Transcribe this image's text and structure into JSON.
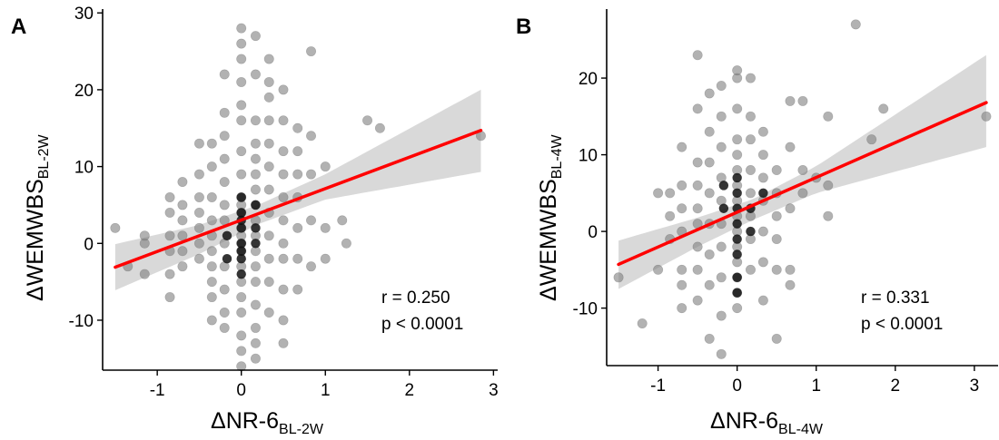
{
  "figure": {
    "panels": [
      "A",
      "B"
    ]
  },
  "chart_data": [
    {
      "panel": "A",
      "type": "scatter",
      "xlabel_main": "ΔNR-6",
      "xlabel_sub": "BL-2W",
      "ylabel_main": "ΔWEMWBS",
      "ylabel_sub": "BL-2W",
      "xlim": [
        -1.65,
        3.05
      ],
      "ylim": [
        -16.5,
        30.5
      ],
      "xticks": [
        -1,
        0,
        1,
        2,
        3
      ],
      "xtick_labels": [
        "-1",
        "0",
        "1",
        "2",
        "3"
      ],
      "yticks": [
        -10,
        0,
        10,
        20,
        30
      ],
      "ytick_labels": [
        "-10",
        "0",
        "10",
        "20",
        "30"
      ],
      "grid": false,
      "annotations": [
        "r = 0.250",
        "p < 0.0001"
      ],
      "point_color": "#7f7f7f",
      "regression": {
        "color": "#ff0000",
        "x": [
          -1.5,
          2.85
        ],
        "y": [
          -3.1,
          14.7
        ]
      },
      "confidence_band": {
        "color": "#d9d9d9",
        "x": [
          -1.5,
          -0.5,
          0.2,
          1.0,
          2.85
        ],
        "lower": [
          -6.1,
          -1.4,
          2.5,
          5.7,
          9.3
        ],
        "upper": [
          -0.1,
          2.4,
          5.0,
          9.0,
          20.0
        ]
      },
      "points": [
        [
          -1.5,
          2
        ],
        [
          -1.35,
          -3
        ],
        [
          -1.15,
          -4
        ],
        [
          -1.15,
          0
        ],
        [
          -1.15,
          1
        ],
        [
          -0.85,
          -7
        ],
        [
          -0.85,
          -4
        ],
        [
          -0.85,
          -1
        ],
        [
          -0.85,
          1
        ],
        [
          -0.85,
          4
        ],
        [
          -0.85,
          6
        ],
        [
          -0.7,
          -3
        ],
        [
          -0.7,
          -1
        ],
        [
          -0.7,
          1
        ],
        [
          -0.7,
          3
        ],
        [
          -0.7,
          5
        ],
        [
          -0.7,
          8
        ],
        [
          -0.5,
          -2
        ],
        [
          -0.5,
          0
        ],
        [
          -0.5,
          2
        ],
        [
          -0.5,
          4
        ],
        [
          -0.5,
          6
        ],
        [
          -0.5,
          9
        ],
        [
          -0.5,
          13
        ],
        [
          -0.35,
          -10
        ],
        [
          -0.35,
          -7
        ],
        [
          -0.35,
          -5
        ],
        [
          -0.35,
          -3
        ],
        [
          -0.35,
          -1
        ],
        [
          -0.35,
          1
        ],
        [
          -0.35,
          3
        ],
        [
          -0.35,
          6
        ],
        [
          -0.35,
          10
        ],
        [
          -0.35,
          13
        ],
        [
          -0.2,
          -11
        ],
        [
          -0.2,
          -9
        ],
        [
          -0.2,
          -6
        ],
        [
          -0.2,
          -3
        ],
        [
          -0.2,
          0
        ],
        [
          -0.2,
          3
        ],
        [
          -0.2,
          5
        ],
        [
          -0.2,
          8
        ],
        [
          -0.2,
          11
        ],
        [
          -0.2,
          14
        ],
        [
          -0.2,
          17
        ],
        [
          -0.2,
          22
        ],
        [
          0,
          -16
        ],
        [
          0,
          -14
        ],
        [
          0,
          -12
        ],
        [
          0,
          -9
        ],
        [
          0,
          -7
        ],
        [
          0,
          -5
        ],
        [
          0,
          -3
        ],
        [
          0,
          -1
        ],
        [
          0,
          0
        ],
        [
          0,
          1
        ],
        [
          0,
          2
        ],
        [
          0,
          4
        ],
        [
          0,
          5
        ],
        [
          0,
          6
        ],
        [
          0,
          9
        ],
        [
          0,
          12
        ],
        [
          0,
          16
        ],
        [
          0,
          18
        ],
        [
          0,
          21
        ],
        [
          0,
          24
        ],
        [
          0,
          26
        ],
        [
          0,
          28
        ],
        [
          0.17,
          -15
        ],
        [
          0.17,
          -13
        ],
        [
          0.17,
          -11
        ],
        [
          0.17,
          -8
        ],
        [
          0.17,
          -5
        ],
        [
          0.17,
          -3
        ],
        [
          0.17,
          -1
        ],
        [
          0.17,
          1
        ],
        [
          0.17,
          3
        ],
        [
          0.17,
          5
        ],
        [
          0.17,
          7
        ],
        [
          0.17,
          9
        ],
        [
          0.17,
          11
        ],
        [
          0.17,
          13
        ],
        [
          0.17,
          16
        ],
        [
          0.17,
          22
        ],
        [
          0.17,
          27
        ],
        [
          0.33,
          -9
        ],
        [
          0.33,
          -5
        ],
        [
          0.33,
          -2
        ],
        [
          0.33,
          1
        ],
        [
          0.33,
          4
        ],
        [
          0.33,
          7
        ],
        [
          0.33,
          10
        ],
        [
          0.33,
          13
        ],
        [
          0.33,
          16
        ],
        [
          0.33,
          19
        ],
        [
          0.33,
          21
        ],
        [
          0.33,
          24
        ],
        [
          0.5,
          -13
        ],
        [
          0.5,
          -10
        ],
        [
          0.5,
          -6
        ],
        [
          0.5,
          -2
        ],
        [
          0.5,
          0
        ],
        [
          0.5,
          3
        ],
        [
          0.5,
          6
        ],
        [
          0.5,
          9
        ],
        [
          0.5,
          12
        ],
        [
          0.5,
          16
        ],
        [
          0.5,
          20
        ],
        [
          0.67,
          -6
        ],
        [
          0.67,
          -2
        ],
        [
          0.67,
          2
        ],
        [
          0.67,
          6
        ],
        [
          0.67,
          9
        ],
        [
          0.67,
          12
        ],
        [
          0.67,
          15
        ],
        [
          0.83,
          -3
        ],
        [
          0.83,
          3
        ],
        [
          0.83,
          9
        ],
        [
          0.83,
          14
        ],
        [
          0.83,
          25
        ],
        [
          1,
          2
        ],
        [
          1,
          -2
        ],
        [
          1,
          10
        ],
        [
          1.2,
          3
        ],
        [
          1.25,
          0
        ],
        [
          1.5,
          16
        ],
        [
          1.65,
          15
        ],
        [
          2.85,
          14
        ]
      ],
      "dark_points": [
        [
          0,
          -4
        ],
        [
          0,
          -2
        ],
        [
          0,
          0
        ],
        [
          0,
          2
        ],
        [
          0,
          4
        ],
        [
          0,
          6
        ],
        [
          0.17,
          0
        ],
        [
          0.17,
          2
        ],
        [
          0.17,
          5
        ],
        [
          -0.17,
          1
        ],
        [
          -0.17,
          -2
        ],
        [
          0,
          -1
        ],
        [
          0,
          3
        ]
      ]
    },
    {
      "panel": "B",
      "type": "scatter",
      "xlabel_main": "ΔNR-6",
      "xlabel_sub": "BL-4W",
      "ylabel_main": "ΔWEMWBS",
      "ylabel_sub": "BL-4W",
      "xlim": [
        -1.65,
        3.3
      ],
      "ylim": [
        -17.5,
        29
      ],
      "xticks": [
        -1,
        0,
        1,
        2,
        3
      ],
      "xtick_labels": [
        "-1",
        "0",
        "1",
        "2",
        "3"
      ],
      "yticks": [
        -10,
        0,
        10,
        20
      ],
      "ytick_labels": [
        "-10",
        "0",
        "10",
        "20"
      ],
      "grid": false,
      "annotations": [
        "r = 0.331",
        "p < 0.0001"
      ],
      "point_color": "#7f7f7f",
      "regression": {
        "color": "#ff0000",
        "x": [
          -1.5,
          3.15
        ],
        "y": [
          -4.3,
          16.8
        ]
      },
      "confidence_band": {
        "color": "#d9d9d9",
        "x": [
          -1.5,
          -0.5,
          0.2,
          1.0,
          3.15
        ],
        "lower": [
          -7.5,
          -2.0,
          1.5,
          5.0,
          11.0
        ],
        "upper": [
          -1.2,
          1.8,
          4.2,
          8.5,
          23.0
        ]
      },
      "points": [
        [
          -1.5,
          -6
        ],
        [
          -1.2,
          -12
        ],
        [
          -1.0,
          5
        ],
        [
          -1.0,
          -5
        ],
        [
          -0.85,
          5
        ],
        [
          -0.85,
          -1
        ],
        [
          -0.85,
          2
        ],
        [
          -0.7,
          -10
        ],
        [
          -0.7,
          -7
        ],
        [
          -0.7,
          -5
        ],
        [
          -0.7,
          0
        ],
        [
          -0.7,
          3
        ],
        [
          -0.7,
          6
        ],
        [
          -0.7,
          11
        ],
        [
          -0.5,
          -9
        ],
        [
          -0.5,
          -5
        ],
        [
          -0.5,
          -2
        ],
        [
          -0.5,
          1
        ],
        [
          -0.5,
          3
        ],
        [
          -0.5,
          6
        ],
        [
          -0.5,
          9
        ],
        [
          -0.5,
          16
        ],
        [
          -0.5,
          23
        ],
        [
          -0.35,
          -14
        ],
        [
          -0.35,
          -7
        ],
        [
          -0.35,
          -3
        ],
        [
          -0.35,
          1
        ],
        [
          -0.35,
          5
        ],
        [
          -0.35,
          9
        ],
        [
          -0.35,
          13
        ],
        [
          -0.35,
          18
        ],
        [
          -0.2,
          -16
        ],
        [
          -0.2,
          -11
        ],
        [
          -0.2,
          -6
        ],
        [
          -0.2,
          -2
        ],
        [
          -0.2,
          1
        ],
        [
          -0.2,
          4
        ],
        [
          -0.2,
          7
        ],
        [
          -0.2,
          11
        ],
        [
          -0.2,
          15
        ],
        [
          -0.2,
          19
        ],
        [
          0,
          -10
        ],
        [
          0,
          -8
        ],
        [
          0,
          -6
        ],
        [
          0,
          -4
        ],
        [
          0,
          -2
        ],
        [
          0,
          0
        ],
        [
          0,
          2
        ],
        [
          0,
          4
        ],
        [
          0,
          6
        ],
        [
          0,
          8
        ],
        [
          0,
          10
        ],
        [
          0,
          12
        ],
        [
          0,
          16
        ],
        [
          0,
          20
        ],
        [
          0,
          21
        ],
        [
          0.17,
          -5
        ],
        [
          0.17,
          -1
        ],
        [
          0.17,
          2
        ],
        [
          0.17,
          5
        ],
        [
          0.17,
          8
        ],
        [
          0.17,
          12
        ],
        [
          0.17,
          15
        ],
        [
          0.17,
          20
        ],
        [
          0.33,
          -9
        ],
        [
          0.33,
          -4
        ],
        [
          0.33,
          0
        ],
        [
          0.33,
          4
        ],
        [
          0.33,
          7
        ],
        [
          0.33,
          10
        ],
        [
          0.33,
          13
        ],
        [
          0.5,
          -14
        ],
        [
          0.5,
          -5
        ],
        [
          0.5,
          -1
        ],
        [
          0.5,
          2
        ],
        [
          0.5,
          5
        ],
        [
          0.5,
          8
        ],
        [
          0.67,
          -7
        ],
        [
          0.67,
          -5
        ],
        [
          0.67,
          3
        ],
        [
          0.67,
          11
        ],
        [
          0.67,
          17
        ],
        [
          0.83,
          5
        ],
        [
          0.83,
          8
        ],
        [
          0.83,
          17
        ],
        [
          1,
          7
        ],
        [
          1.15,
          2
        ],
        [
          1.15,
          6
        ],
        [
          1.15,
          15
        ],
        [
          1.5,
          27
        ],
        [
          1.7,
          12
        ],
        [
          1.85,
          16
        ],
        [
          3.15,
          15
        ]
      ],
      "dark_points": [
        [
          0,
          -8
        ],
        [
          0,
          -6
        ],
        [
          0,
          -3
        ],
        [
          0,
          -1
        ],
        [
          0,
          1
        ],
        [
          0,
          3
        ],
        [
          0,
          5
        ],
        [
          0,
          7
        ],
        [
          0.17,
          0
        ],
        [
          0.17,
          3
        ],
        [
          -0.17,
          3
        ],
        [
          -0.17,
          6
        ],
        [
          0.33,
          5
        ]
      ]
    }
  ]
}
